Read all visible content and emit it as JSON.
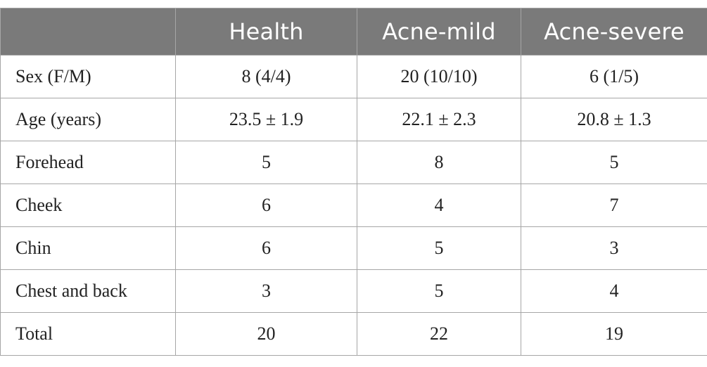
{
  "table": {
    "headers": [
      "",
      "Health",
      "Acne-mild",
      "Acne-severe"
    ],
    "rows": [
      {
        "label": "Sex (F/M)",
        "values": [
          "8 (4/4)",
          "20 (10/10)",
          "6 (1/5)"
        ]
      },
      {
        "label": "Age (years)",
        "values": [
          "23.5 ± 1.9",
          "22.1 ± 2.3",
          "20.8 ± 1.3"
        ]
      },
      {
        "label": "Forehead",
        "values": [
          "5",
          "8",
          "5"
        ]
      },
      {
        "label": "Cheek",
        "values": [
          "6",
          "4",
          "7"
        ]
      },
      {
        "label": "Chin",
        "values": [
          "6",
          "5",
          "3"
        ]
      },
      {
        "label": "Chest and back",
        "values": [
          "3",
          "5",
          "4"
        ]
      },
      {
        "label": "Total",
        "values": [
          "20",
          "22",
          "19"
        ]
      }
    ]
  },
  "colors": {
    "header_bg": "#7a7a7a",
    "header_text": "#ffffff",
    "border": "#a6a6a6",
    "body_text": "#222222"
  }
}
